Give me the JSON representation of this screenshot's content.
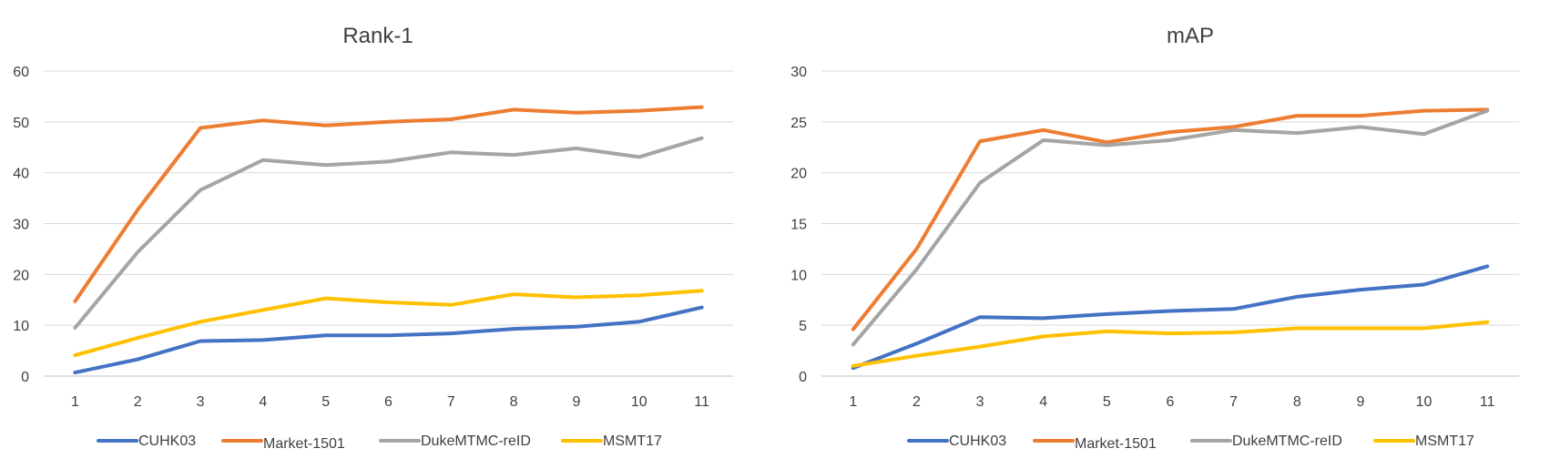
{
  "chart_data": [
    {
      "type": "line",
      "title": "Rank-1",
      "xlabel": "",
      "ylabel": "",
      "x": [
        "1",
        "2",
        "3",
        "4",
        "5",
        "6",
        "7",
        "8",
        "9",
        "10",
        "11"
      ],
      "ylim": [
        0,
        60
      ],
      "yticks": [
        "0",
        "10",
        "20",
        "30",
        "40",
        "50",
        "60"
      ],
      "grid": true,
      "legend_position": "bottom",
      "series": [
        {
          "name": "CUHK03",
          "color": "#4472C4",
          "values": [
            0.7,
            3.3,
            6.9,
            7.1,
            8.0,
            8.0,
            8.4,
            9.3,
            9.7,
            10.7,
            13.5
          ]
        },
        {
          "name": "Market-1501",
          "color": "#ED7D31",
          "values": [
            14.7,
            32.7,
            48.8,
            50.3,
            49.3,
            50.0,
            50.5,
            52.4,
            51.8,
            52.2,
            52.9
          ]
        },
        {
          "name": "DukeMTMC-reID",
          "color": "#A5A5A5",
          "values": [
            9.5,
            24.4,
            36.6,
            42.5,
            41.5,
            42.2,
            44.0,
            43.5,
            44.8,
            43.1,
            46.8
          ]
        },
        {
          "name": "MSMT17",
          "color": "#FFC000",
          "values": [
            4.1,
            7.5,
            10.7,
            13.0,
            15.3,
            14.5,
            14.0,
            16.1,
            15.5,
            15.9,
            16.8
          ]
        }
      ]
    },
    {
      "type": "line",
      "title": "mAP",
      "xlabel": "",
      "ylabel": "",
      "x": [
        "1",
        "2",
        "3",
        "4",
        "5",
        "6",
        "7",
        "8",
        "9",
        "10",
        "11"
      ],
      "ylim": [
        0,
        30
      ],
      "yticks": [
        "0",
        "5",
        "10",
        "15",
        "20",
        "25",
        "30"
      ],
      "grid": true,
      "legend_position": "bottom",
      "series": [
        {
          "name": "CUHK03",
          "color": "#4472C4",
          "values": [
            0.8,
            3.2,
            5.8,
            5.7,
            6.1,
            6.4,
            6.6,
            7.8,
            8.5,
            9.0,
            10.8
          ]
        },
        {
          "name": "Market-1501",
          "color": "#ED7D31",
          "values": [
            4.6,
            12.5,
            23.1,
            24.2,
            23.0,
            24.0,
            24.5,
            25.6,
            25.6,
            26.1,
            26.2
          ]
        },
        {
          "name": "DukeMTMC-reID",
          "color": "#A5A5A5",
          "values": [
            3.1,
            10.5,
            19.0,
            23.2,
            22.7,
            23.2,
            24.2,
            23.9,
            24.5,
            23.8,
            26.1
          ]
        },
        {
          "name": "MSMT17",
          "color": "#FFC000",
          "values": [
            1.0,
            2.0,
            2.9,
            3.9,
            4.4,
            4.2,
            4.3,
            4.7,
            4.7,
            4.7,
            5.3
          ]
        }
      ]
    }
  ]
}
